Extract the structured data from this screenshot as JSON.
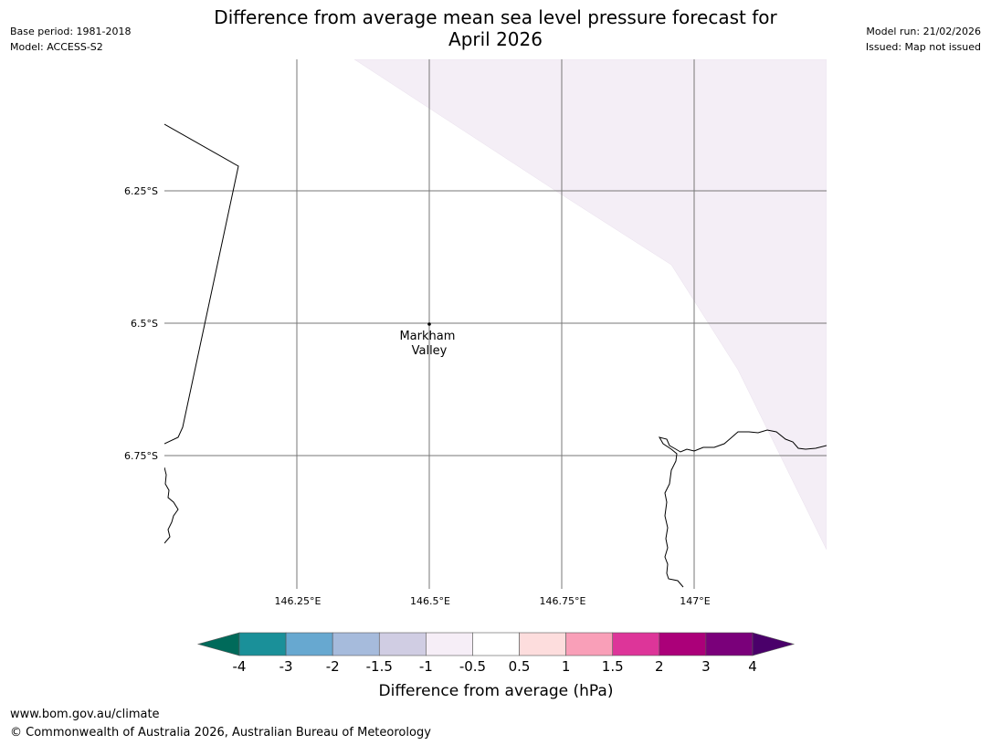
{
  "header": {
    "title_line1": "Difference from average mean sea level pressure forecast for",
    "title_line2": "April 2026",
    "base_period": "Base period: 1981-2018",
    "model": "Model: ACCESS-S2",
    "model_run": "Model run: 21/02/2026",
    "issued": "Issued: Map not issued"
  },
  "map": {
    "lat_labels": [
      "6.25°S",
      "6.5°S",
      "6.75°S"
    ],
    "lon_labels": [
      "146.25°E",
      "146.5°E",
      "146.75°E",
      "147°E"
    ],
    "place": {
      "line1": "Markham",
      "line2": "Valley"
    },
    "shaded_region_color": "#f4eef6"
  },
  "colorbar": {
    "label": "Difference from average (hPa)",
    "ticks": [
      "-4",
      "-3",
      "-2",
      "-1.5",
      "-1",
      "-0.5",
      "0.5",
      "1",
      "1.5",
      "2",
      "3",
      "4"
    ],
    "under_color": "#006a5a",
    "over_color": "#4a006a",
    "colors": [
      "#1a9099",
      "#67a8d0",
      "#a6bbdc",
      "#d0cde3",
      "#f6eef7",
      "#ffffff",
      "#fddddd",
      "#f99fb8",
      "#dd3599",
      "#ab0079",
      "#7a007a"
    ]
  },
  "footer": {
    "url": "www.bom.gov.au/climate",
    "copyright": "© Commonwealth of Australia 2026, Australian Bureau of Meteorology"
  }
}
